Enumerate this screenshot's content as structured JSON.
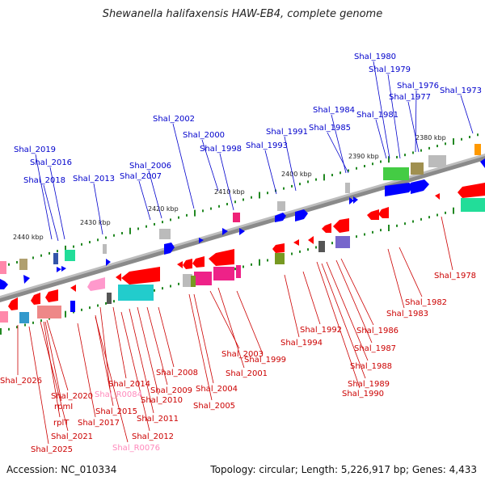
{
  "title": "Shewanella halifaxensis HAW-EB4, complete genome",
  "footer": {
    "accession": "Accession: NC_010334",
    "summary": "Topology: circular; Length: 5,226,917 bp; Genes: 4,433"
  },
  "colors": {
    "upper_label": "#0000cc",
    "lower_label": "#cc0000",
    "rna_label": "#ff88bb",
    "backbone": "#8a8a8a",
    "tick": "#228822",
    "forward_gene": "#0000ff",
    "reverse_gene": "#ff0000"
  },
  "scale_labels": [
    "2440 kbp",
    "2430 kbp",
    "2420 kbp",
    "2410 kbp",
    "2400 kbp",
    "2390 kbp",
    "2380 kbp"
  ],
  "upper_labels": [
    "Shal_1980",
    "Shal_1979",
    "Shal_1976",
    "Shal_1977",
    "Shal_1973",
    "Shal_1984",
    "Shal_1981",
    "Shal_2002",
    "Shal_1985",
    "Shal_1991",
    "Shal_2000",
    "Shal_1993",
    "Shal_1998",
    "Shal_2019",
    "Shal_2016",
    "Shal_2006",
    "Shal_2007",
    "Shal_2018",
    "Shal_2013"
  ],
  "lower_labels": [
    "Shal_1978",
    "Shal_1982",
    "Shal_1983",
    "Shal_1992",
    "Shal_1986",
    "Shal_1994",
    "Shal_1987",
    "Shal_2003",
    "Shal_1999",
    "Shal_1988",
    "Shal_2001",
    "Shal_1989",
    "Shal_2008",
    "Shal_1990",
    "Shal_2026",
    "Shal_2014",
    "Shal_2004",
    "Shal_2009",
    "Shal_R0084",
    "Shal_2020",
    "Shal_2010",
    "rpmI",
    "Shal_2005",
    "Shal_2015",
    "Shal_2011",
    "rplT",
    "Shal_2017",
    "Shal_2021",
    "Shal_2012",
    "Shal_2025",
    "Shal_R0076"
  ]
}
